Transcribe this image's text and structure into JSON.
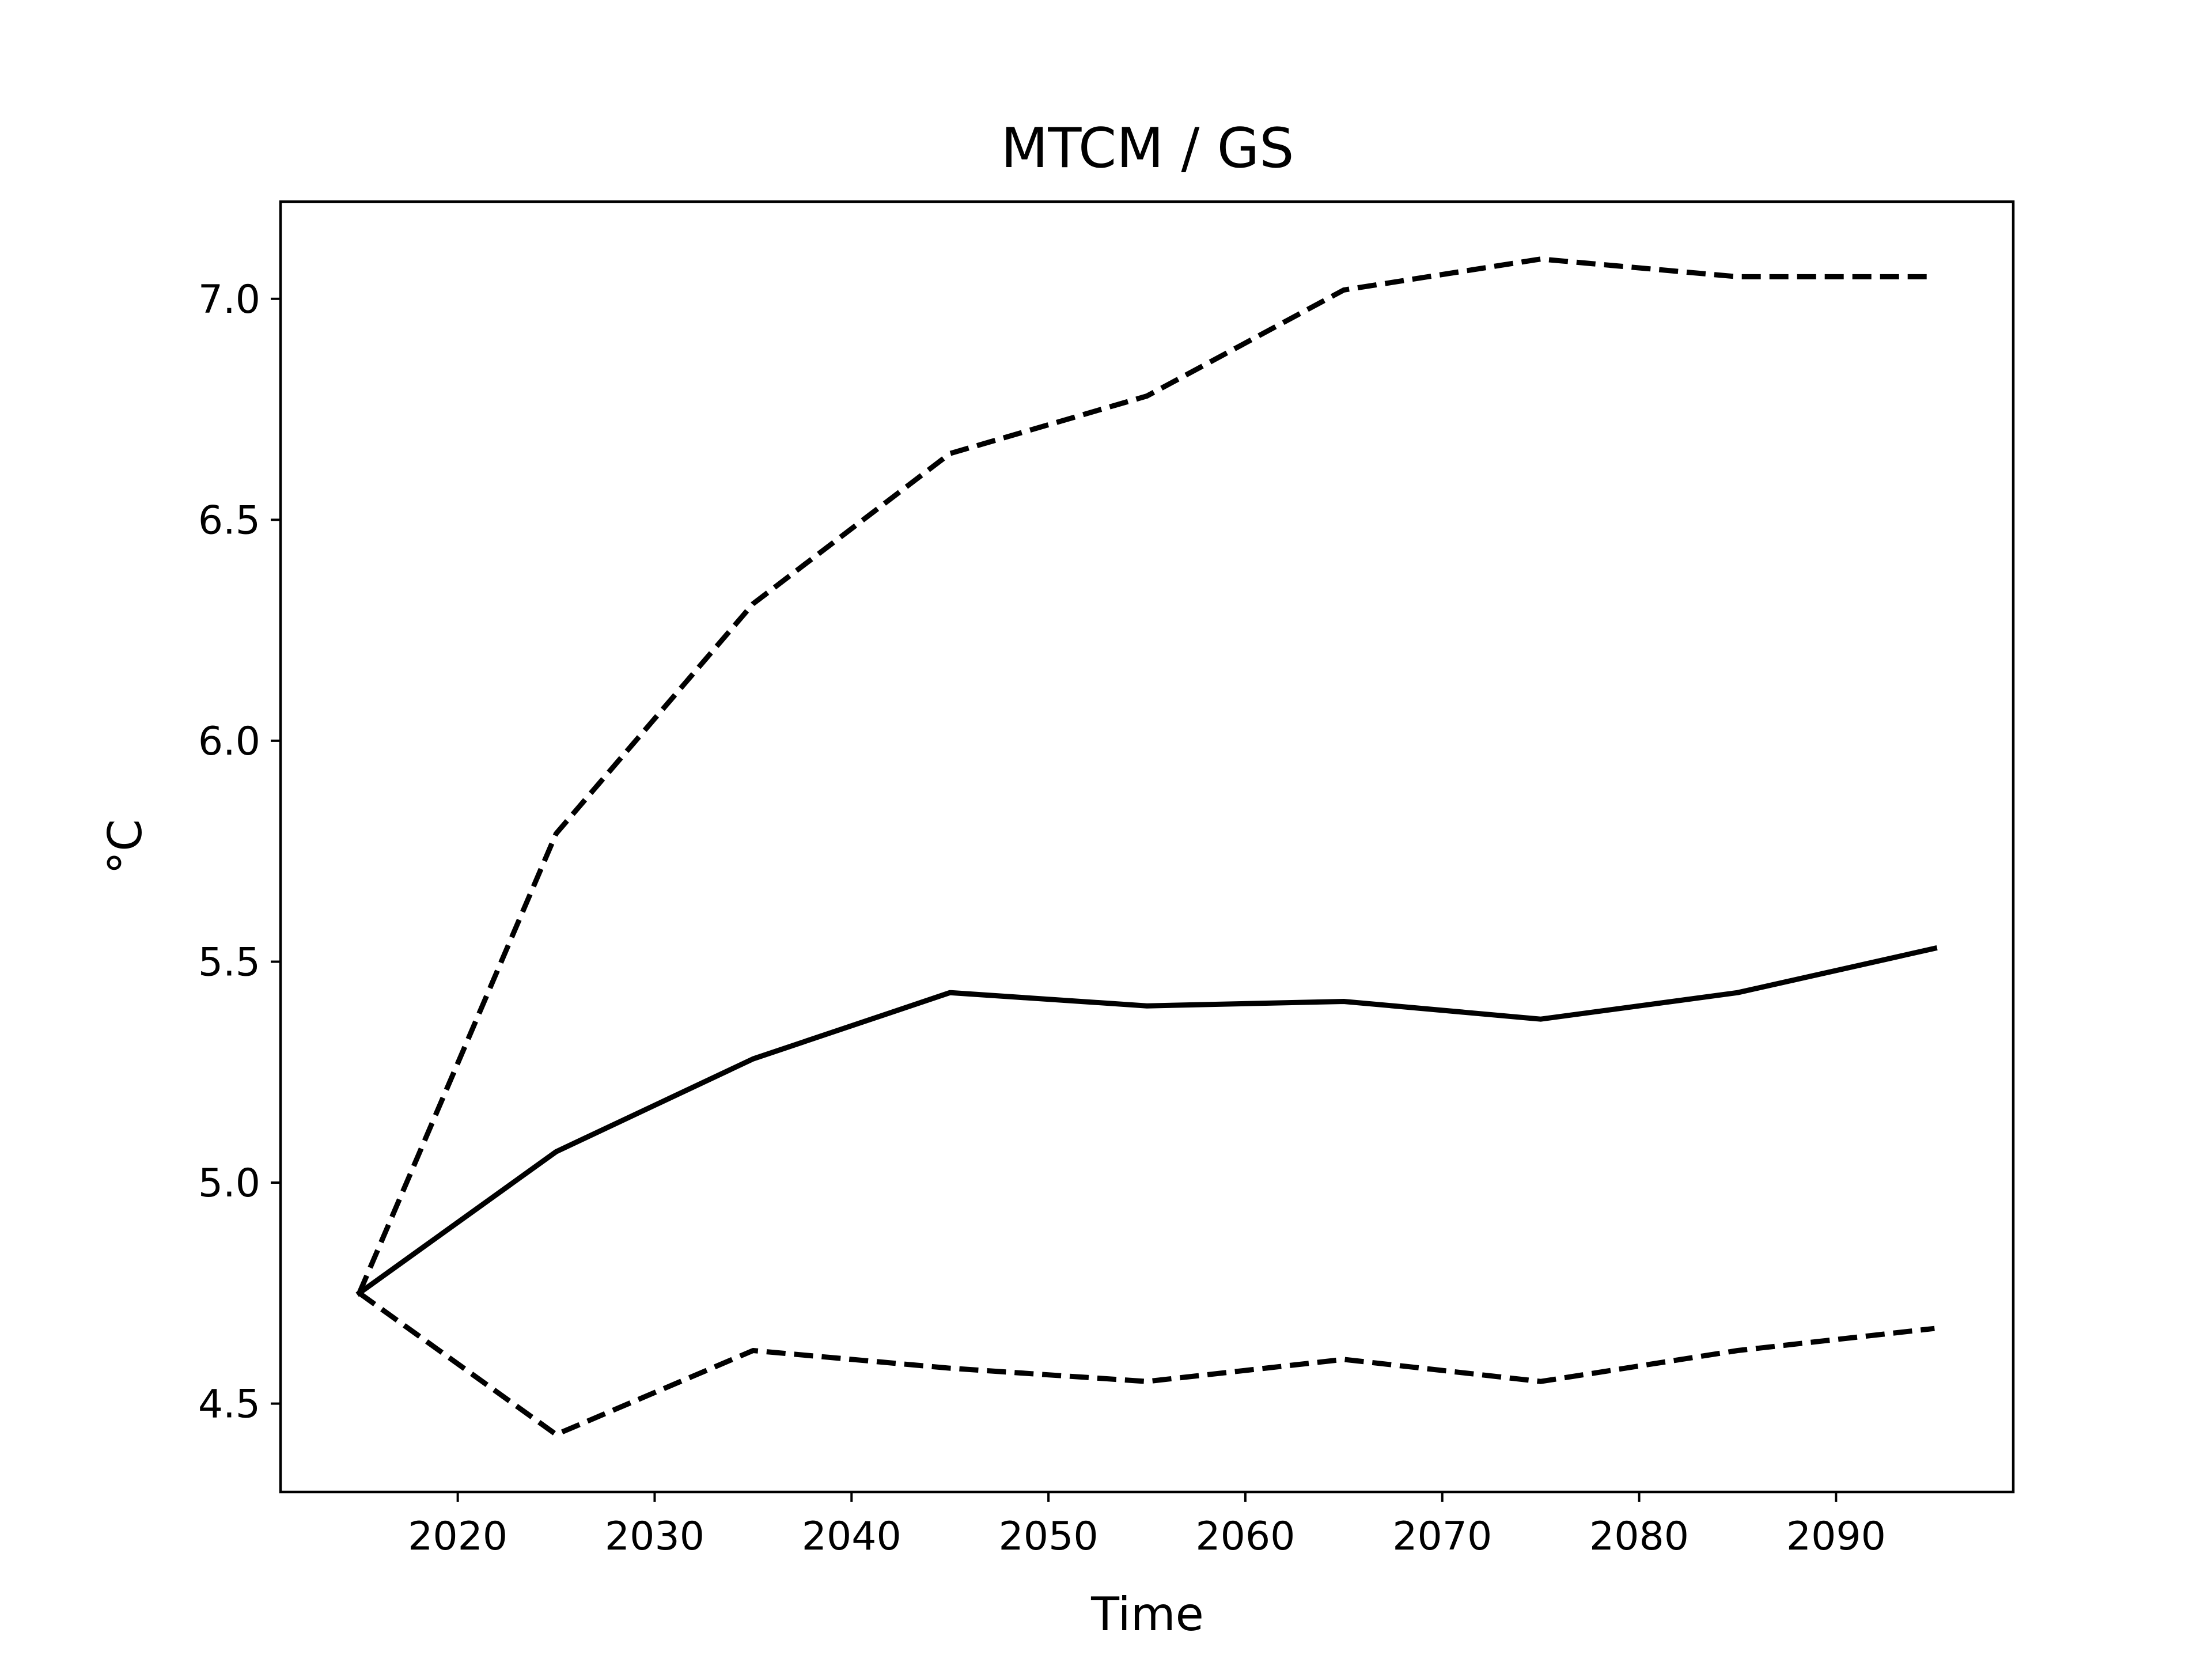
{
  "chart_data": {
    "type": "line",
    "title": "MTCM / GS",
    "xlabel": "Time",
    "ylabel": "°C",
    "xlim": [
      2011,
      2099
    ],
    "ylim": [
      4.3,
      7.22
    ],
    "xticks": [
      2020,
      2030,
      2040,
      2050,
      2060,
      2070,
      2080,
      2090
    ],
    "xtick_labels": [
      "2020",
      "2030",
      "2040",
      "2050",
      "2060",
      "2070",
      "2080",
      "2090"
    ],
    "yticks": [
      4.5,
      5.0,
      5.5,
      6.0,
      6.5,
      7.0
    ],
    "ytick_labels": [
      "4.5",
      "5.0",
      "5.5",
      "6.0",
      "6.5",
      "7.0"
    ],
    "grid": false,
    "x": [
      2015,
      2025,
      2035,
      2045,
      2055,
      2065,
      2075,
      2085,
      2095
    ],
    "series": [
      {
        "style": "solid",
        "color": "#000000",
        "values": [
          4.75,
          5.07,
          5.28,
          5.43,
          5.4,
          5.41,
          5.37,
          5.43,
          5.53
        ]
      },
      {
        "style": "dashed",
        "color": "#000000",
        "values": [
          4.75,
          5.79,
          6.31,
          6.65,
          6.78,
          7.02,
          7.09,
          7.05,
          7.05
        ]
      },
      {
        "style": "dashed",
        "color": "#000000",
        "values": [
          4.75,
          4.43,
          4.62,
          4.58,
          4.55,
          4.6,
          4.55,
          4.62,
          4.67
        ]
      }
    ]
  }
}
